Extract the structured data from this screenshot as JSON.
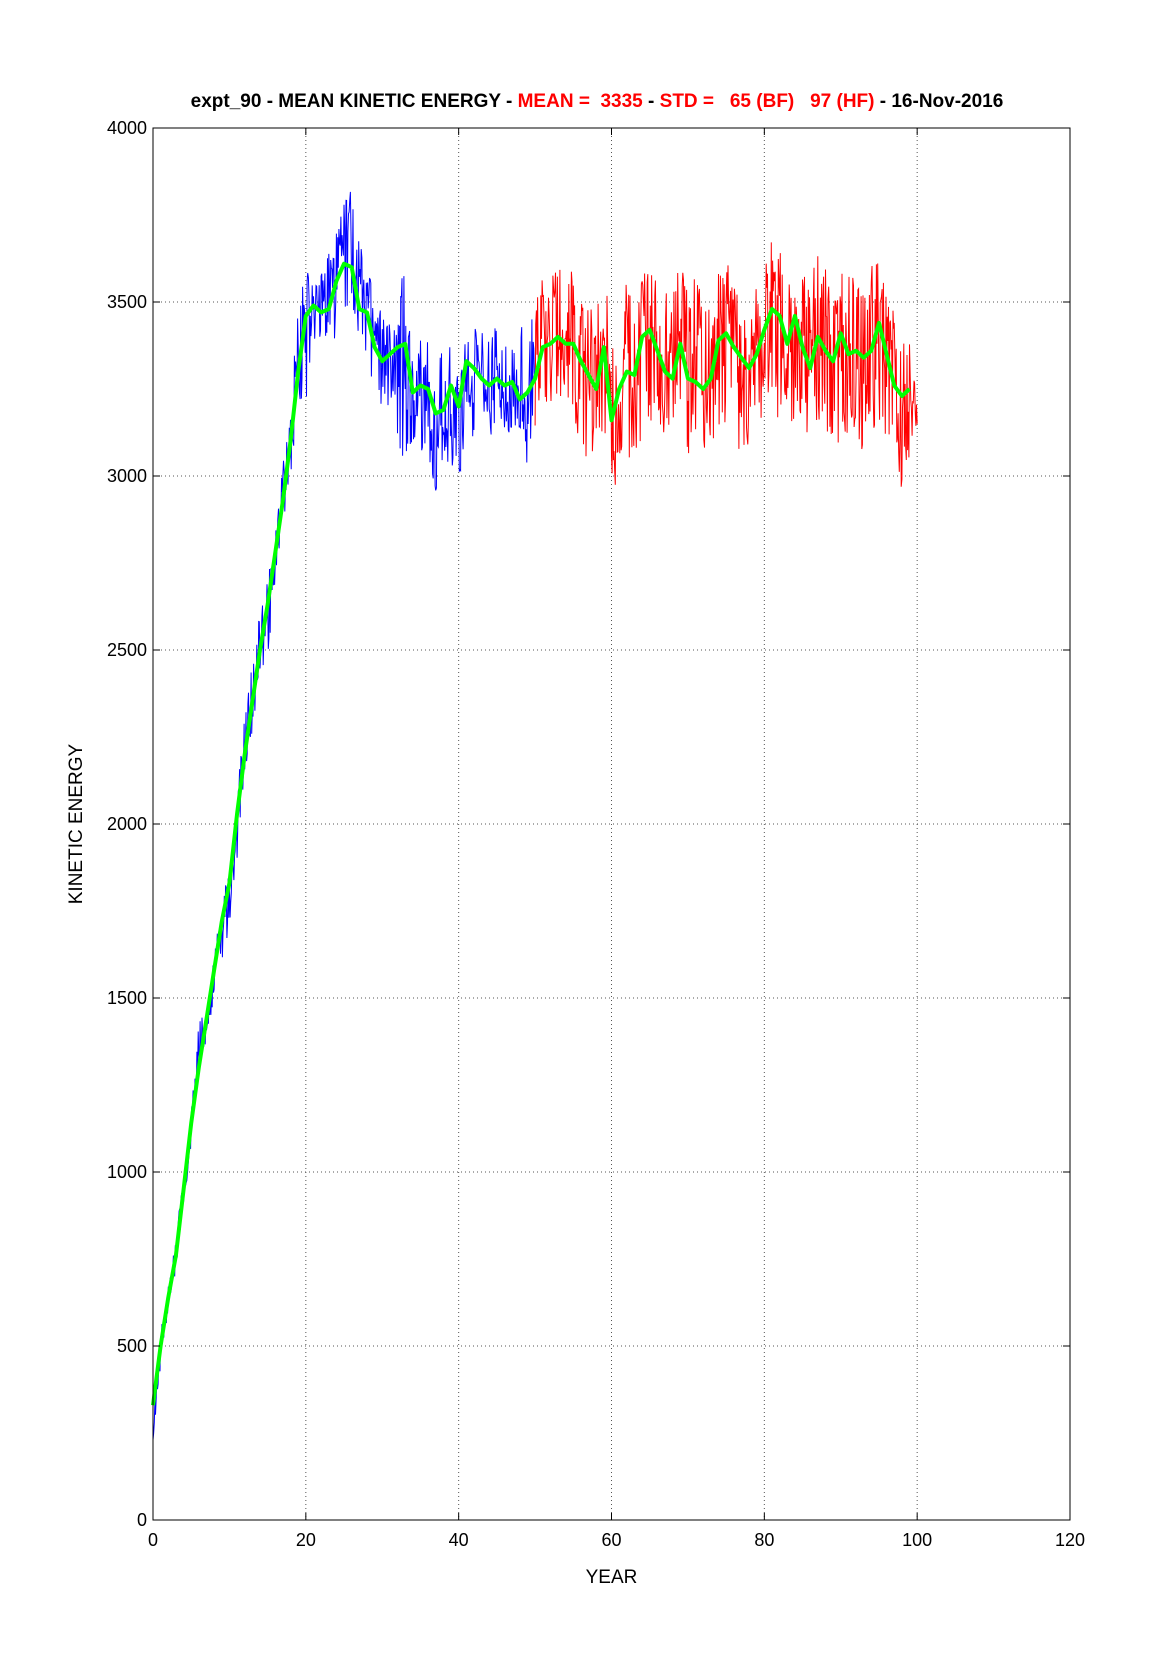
{
  "chart_data": {
    "type": "line",
    "title_parts": [
      {
        "text": "expt_90 - MEAN KINETIC ENERGY - ",
        "color": "#000000"
      },
      {
        "text": "MEAN =  3335",
        "color": "#ff0000"
      },
      {
        "text": " - ",
        "color": "#000000"
      },
      {
        "text": "STD =   65 (BF)   97 (HF)",
        "color": "#ff0000"
      },
      {
        "text": " - 16-Nov-2016",
        "color": "#000000"
      }
    ],
    "xlabel": "YEAR",
    "ylabel": "KINETIC ENERGY",
    "xlim": [
      0,
      120
    ],
    "ylim": [
      0,
      4000
    ],
    "xticks": [
      0,
      20,
      40,
      60,
      80,
      100,
      120
    ],
    "yticks": [
      0,
      500,
      1000,
      1500,
      2000,
      2500,
      3000,
      3500,
      4000
    ],
    "grid": true,
    "colors": {
      "spinup": "#0000ff",
      "equilibrium": "#ff0000",
      "smoothed": "#00ff00",
      "axes": "#000000",
      "grid": "#555555"
    },
    "series": [
      {
        "color": "#0000ff",
        "x": [
          0,
          1,
          2,
          3,
          4,
          5,
          6,
          7,
          8,
          9,
          10,
          11,
          12,
          13,
          14,
          15,
          16,
          17,
          18,
          19,
          20,
          21,
          22,
          23,
          24,
          25,
          26,
          27,
          28,
          29,
          30,
          31,
          32,
          33,
          34,
          35,
          36,
          37,
          38,
          39,
          40,
          41,
          42,
          43,
          44,
          45,
          46,
          47,
          48,
          49,
          50
        ],
        "y": [
          230,
          480,
          620,
          750,
          930,
          1120,
          1330,
          1420,
          1560,
          1690,
          1760,
          1970,
          2200,
          2340,
          2500,
          2600,
          2760,
          2920,
          3080,
          3300,
          3470,
          3500,
          3460,
          3560,
          3520,
          3700,
          3780,
          3600,
          3500,
          3380,
          3330,
          3290,
          3330,
          3440,
          3160,
          3220,
          3270,
          3070,
          3150,
          3190,
          3110,
          3320,
          3300,
          3230,
          3180,
          3300,
          3240,
          3290,
          3200,
          3160,
          3270
        ],
        "y_high": [
          290,
          540,
          680,
          820,
          1000,
          1200,
          1450,
          1470,
          1620,
          1800,
          1880,
          2080,
          2320,
          2460,
          2620,
          2700,
          2860,
          3040,
          3200,
          3500,
          3670,
          3600,
          3580,
          3660,
          3700,
          3790,
          3840,
          3720,
          3620,
          3500,
          3480,
          3450,
          3440,
          3660,
          3360,
          3400,
          3440,
          3380,
          3380,
          3390,
          3360,
          3460,
          3450,
          3440,
          3400,
          3440,
          3420,
          3460,
          3440,
          3420,
          3500
        ],
        "y_low": [
          230,
          440,
          600,
          720,
          890,
          1080,
          1290,
          1380,
          1500,
          1600,
          1700,
          1900,
          2140,
          2260,
          2420,
          2480,
          2680,
          2860,
          3000,
          3200,
          3160,
          3380,
          3340,
          3380,
          3370,
          3460,
          3470,
          3390,
          3340,
          3180,
          3140,
          3150,
          3100,
          3000,
          3040,
          3060,
          3050,
          2950,
          3060,
          3010,
          2960,
          3120,
          3110,
          3120,
          3090,
          3120,
          3100,
          3120,
          3090,
          3020,
          3130
        ]
      },
      {
        "color": "#ff0000",
        "x": [
          50,
          51,
          52,
          53,
          54,
          55,
          56,
          57,
          58,
          59,
          60,
          61,
          62,
          63,
          64,
          65,
          66,
          67,
          68,
          69,
          70,
          71,
          72,
          73,
          74,
          75,
          76,
          77,
          78,
          79,
          80,
          81,
          82,
          83,
          84,
          85,
          86,
          87,
          88,
          89,
          90,
          91,
          92,
          93,
          94,
          95,
          96,
          97,
          98,
          99,
          100
        ],
        "y": [
          3270,
          3390,
          3380,
          3420,
          3350,
          3360,
          3270,
          3300,
          3200,
          3390,
          3100,
          3220,
          3290,
          3260,
          3460,
          3400,
          3360,
          3300,
          3280,
          3400,
          3250,
          3360,
          3300,
          3210,
          3350,
          3500,
          3400,
          3250,
          3300,
          3380,
          3400,
          3430,
          3440,
          3320,
          3400,
          3300,
          3280,
          3500,
          3430,
          3260,
          3450,
          3360,
          3350,
          3280,
          3430,
          3500,
          3310,
          3300,
          3020,
          3260,
          3150
        ],
        "y_high": [
          3500,
          3570,
          3590,
          3630,
          3570,
          3600,
          3490,
          3560,
          3470,
          3600,
          3430,
          3520,
          3560,
          3510,
          3620,
          3610,
          3560,
          3550,
          3520,
          3630,
          3520,
          3580,
          3540,
          3460,
          3590,
          3610,
          3600,
          3500,
          3520,
          3580,
          3600,
          3720,
          3700,
          3560,
          3600,
          3590,
          3530,
          3680,
          3620,
          3480,
          3640,
          3590,
          3560,
          3530,
          3600,
          3700,
          3550,
          3500,
          3400,
          3420,
          3350
        ],
        "y_low": [
          3120,
          3170,
          3160,
          3180,
          3130,
          3160,
          3040,
          3060,
          3040,
          3140,
          2890,
          3040,
          3070,
          3020,
          3120,
          3150,
          3120,
          3100,
          3080,
          3150,
          3060,
          3110,
          3080,
          3030,
          3120,
          3160,
          3120,
          3020,
          3100,
          3130,
          3170,
          3190,
          3160,
          3110,
          3160,
          3090,
          3080,
          3150,
          3110,
          3040,
          3120,
          3120,
          3100,
          3060,
          3120,
          3150,
          3080,
          3070,
          2950,
          3060,
          3080
        ]
      },
      {
        "color": "#00ff00",
        "x": [
          0,
          1,
          2,
          3,
          4,
          5,
          6,
          7,
          8,
          9,
          10,
          11,
          12,
          13,
          14,
          15,
          16,
          17,
          18,
          19,
          20,
          21,
          22,
          23,
          24,
          25,
          26,
          27,
          28,
          29,
          30,
          31,
          32,
          33,
          34,
          35,
          36,
          37,
          38,
          39,
          40,
          41,
          42,
          43,
          44,
          45,
          46,
          47,
          48,
          49,
          50,
          51,
          52,
          53,
          54,
          55,
          56,
          57,
          58,
          59,
          60,
          61,
          62,
          63,
          64,
          65,
          66,
          67,
          68,
          69,
          70,
          71,
          72,
          73,
          74,
          75,
          76,
          77,
          78,
          79,
          80,
          81,
          82,
          83,
          84,
          85,
          86,
          87,
          88,
          89,
          90,
          91,
          92,
          93,
          94,
          95,
          96,
          97,
          98,
          99
        ],
        "y": [
          330,
          500,
          640,
          760,
          950,
          1140,
          1300,
          1440,
          1580,
          1720,
          1830,
          2030,
          2200,
          2350,
          2500,
          2630,
          2780,
          2930,
          3100,
          3300,
          3460,
          3490,
          3470,
          3480,
          3560,
          3610,
          3600,
          3480,
          3470,
          3370,
          3330,
          3350,
          3370,
          3380,
          3240,
          3260,
          3250,
          3180,
          3190,
          3260,
          3200,
          3330,
          3310,
          3280,
          3260,
          3280,
          3260,
          3270,
          3220,
          3240,
          3280,
          3370,
          3380,
          3400,
          3380,
          3380,
          3330,
          3290,
          3250,
          3370,
          3160,
          3250,
          3300,
          3290,
          3400,
          3420,
          3360,
          3300,
          3280,
          3380,
          3280,
          3270,
          3250,
          3280,
          3390,
          3410,
          3370,
          3340,
          3310,
          3350,
          3420,
          3480,
          3460,
          3380,
          3460,
          3370,
          3310,
          3400,
          3360,
          3330,
          3410,
          3350,
          3360,
          3340,
          3360,
          3440,
          3350,
          3260,
          3230,
          3250
        ]
      }
    ]
  }
}
